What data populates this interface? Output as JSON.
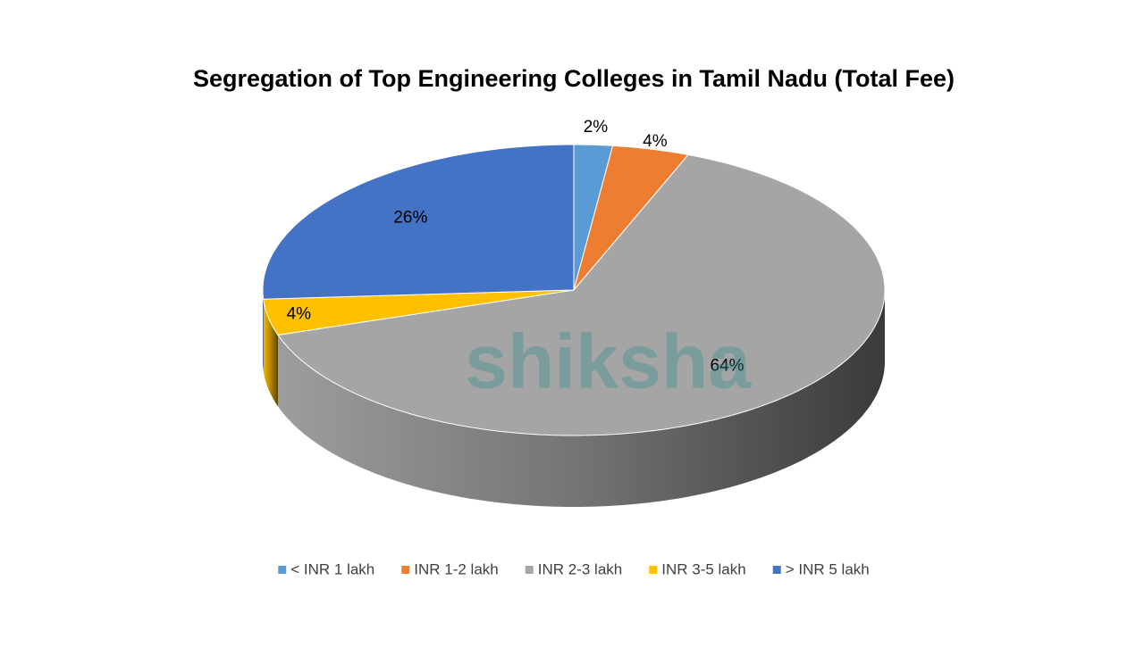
{
  "chart_data": {
    "type": "pie3d",
    "title": "Segregation of Top Engineering Colleges in Tamil Nadu (Total Fee)",
    "categories": [
      "< INR 1 lakh",
      "INR 1-2 lakh",
      "INR 2-3 lakh",
      "INR 3-5 lakh",
      "> INR 5 lakh"
    ],
    "values": [
      2,
      4,
      64,
      4,
      26
    ],
    "value_labels": [
      "2%",
      "4%",
      "64%",
      "4%",
      "26%"
    ],
    "colors": [
      "#5b9bd5",
      "#ed7d31",
      "#a5a5a5",
      "#ffc000",
      "#4472c4"
    ],
    "legend": "bottom",
    "watermark": "shiksha"
  }
}
